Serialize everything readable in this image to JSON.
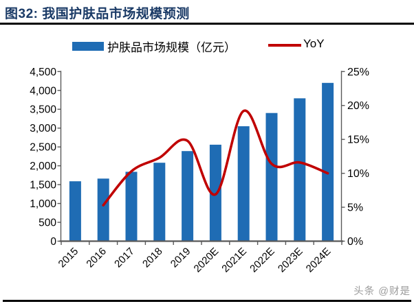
{
  "title": "图32: 我国护肤品市场规模预测",
  "legend": {
    "bar_label": "护肤品市场规模（亿元）",
    "line_label": "YoY"
  },
  "watermark": "头条 @财是",
  "colors": {
    "bar": "#1F6CB4",
    "line": "#C00000",
    "title": "#1A3A66",
    "axis": "#595959",
    "label": "#000000",
    "watermark": "#9B9B9B",
    "rule": "#000000"
  },
  "chart_data": {
    "type": "bar",
    "title": "我国护肤品市场规模预测",
    "categories": [
      "2015",
      "2016",
      "2017",
      "2018",
      "2019",
      "2020E",
      "2021E",
      "2022E",
      "2023E",
      "2024E"
    ],
    "series": [
      {
        "name": "护肤品市场规模（亿元）",
        "type": "bar",
        "axis": "left",
        "values": [
          1590,
          1660,
          1840,
          2080,
          2390,
          2560,
          3050,
          3400,
          3790,
          4200
        ]
      },
      {
        "name": "YoY",
        "type": "line",
        "axis": "right",
        "values": [
          null,
          5.3,
          10.3,
          12.3,
          14.8,
          6.9,
          19.2,
          11.4,
          11.6,
          10.0
        ]
      }
    ],
    "left_axis": {
      "min": 0,
      "max": 4500,
      "step": 500,
      "tick_labels": [
        "0",
        "500",
        "1,000",
        "1,500",
        "2,000",
        "2,500",
        "3,000",
        "3,500",
        "4,000",
        "4,500"
      ]
    },
    "right_axis": {
      "min": 0,
      "max": 25,
      "step": 5,
      "tick_labels": [
        "0%",
        "5%",
        "10%",
        "15%",
        "20%",
        "25%"
      ]
    },
    "grid": false,
    "legend_position": "top",
    "line_smoothed": true
  }
}
